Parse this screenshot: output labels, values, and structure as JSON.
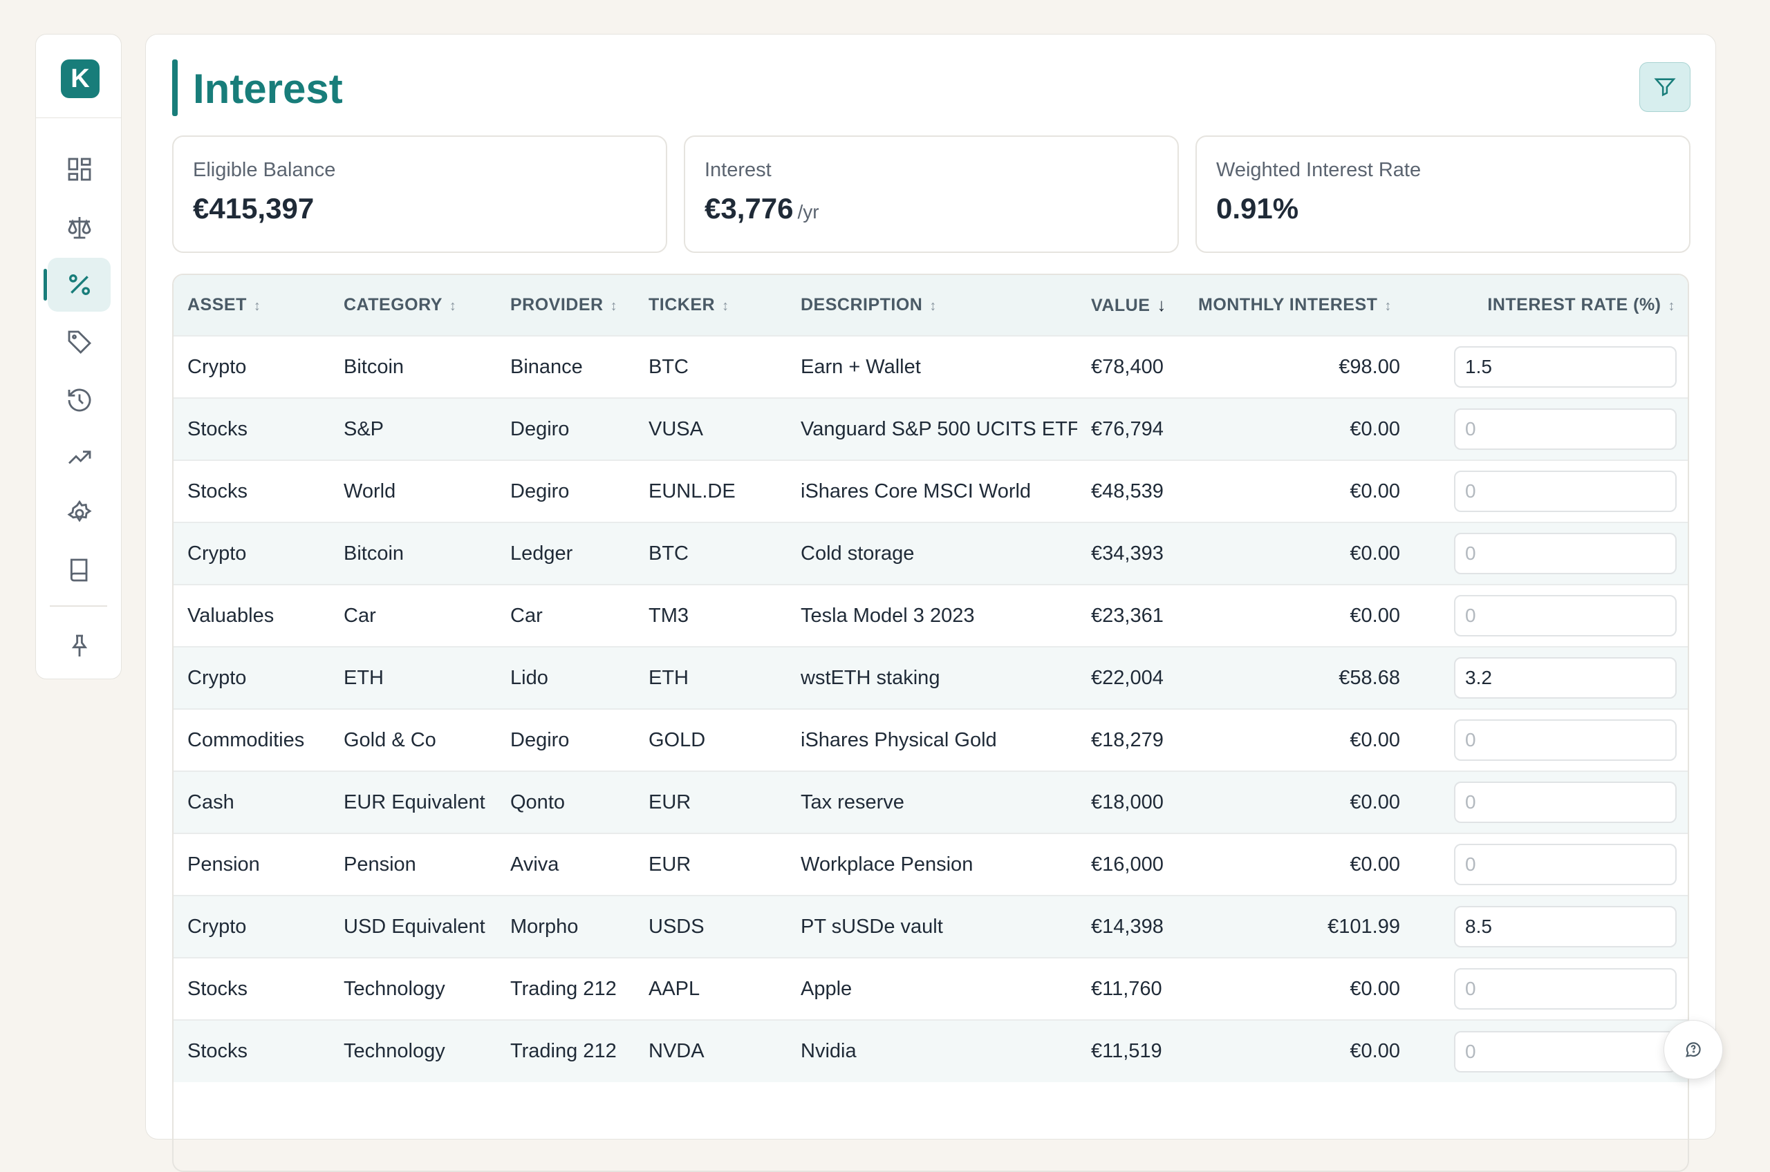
{
  "app": {
    "logo_letter": "K",
    "accent": "#187d7a"
  },
  "sidebar": {
    "items": [
      {
        "name": "dashboard",
        "icon": "dashboard-icon"
      },
      {
        "name": "balance",
        "icon": "scale-icon"
      },
      {
        "name": "interest",
        "icon": "percent-icon",
        "active": true
      },
      {
        "name": "tags",
        "icon": "tag-icon"
      },
      {
        "name": "history",
        "icon": "history-icon"
      },
      {
        "name": "trends",
        "icon": "trending-up-icon"
      },
      {
        "name": "settings",
        "icon": "gear-icon"
      },
      {
        "name": "docs",
        "icon": "book-icon"
      }
    ],
    "pin_icon": "pin-icon"
  },
  "page": {
    "title": "Interest"
  },
  "stats": {
    "eligible_label": "Eligible Balance",
    "eligible_value": "€415,397",
    "interest_label": "Interest",
    "interest_value": "€3,776",
    "interest_suffix": "/yr",
    "rate_label": "Weighted Interest Rate",
    "rate_value": "0.91%"
  },
  "table": {
    "columns": [
      {
        "key": "asset",
        "label": "ASSET"
      },
      {
        "key": "category",
        "label": "CATEGORY"
      },
      {
        "key": "provider",
        "label": "PROVIDER"
      },
      {
        "key": "ticker",
        "label": "TICKER"
      },
      {
        "key": "description",
        "label": "DESCRIPTION"
      },
      {
        "key": "value",
        "label": "VALUE",
        "sorted": "desc"
      },
      {
        "key": "monthly_interest",
        "label": "MONTHLY INTEREST"
      },
      {
        "key": "interest_rate",
        "label": "INTEREST RATE (%)"
      }
    ],
    "input_placeholder": "0",
    "rows": [
      {
        "asset": "Crypto",
        "category": "Bitcoin",
        "provider": "Binance",
        "ticker": "BTC",
        "description": "Earn + Wallet",
        "value": "€78,400",
        "monthly_interest": "€98.00",
        "rate": "1.5"
      },
      {
        "asset": "Stocks",
        "category": "S&P",
        "provider": "Degiro",
        "ticker": "VUSA",
        "description": "Vanguard S&P 500 UCITS ETF",
        "value": "€76,794",
        "monthly_interest": "€0.00",
        "rate": ""
      },
      {
        "asset": "Stocks",
        "category": "World",
        "provider": "Degiro",
        "ticker": "EUNL.DE",
        "description": "iShares Core MSCI World",
        "value": "€48,539",
        "monthly_interest": "€0.00",
        "rate": ""
      },
      {
        "asset": "Crypto",
        "category": "Bitcoin",
        "provider": "Ledger",
        "ticker": "BTC",
        "description": "Cold storage",
        "value": "€34,393",
        "monthly_interest": "€0.00",
        "rate": ""
      },
      {
        "asset": "Valuables",
        "category": "Car",
        "provider": "Car",
        "ticker": "TM3",
        "description": "Tesla Model 3 2023",
        "value": "€23,361",
        "monthly_interest": "€0.00",
        "rate": ""
      },
      {
        "asset": "Crypto",
        "category": "ETH",
        "provider": "Lido",
        "ticker": "ETH",
        "description": "wstETH staking",
        "value": "€22,004",
        "monthly_interest": "€58.68",
        "rate": "3.2"
      },
      {
        "asset": "Commodities",
        "category": "Gold & Co",
        "provider": "Degiro",
        "ticker": "GOLD",
        "description": "iShares Physical Gold",
        "value": "€18,279",
        "monthly_interest": "€0.00",
        "rate": ""
      },
      {
        "asset": "Cash",
        "category": "EUR Equivalent",
        "provider": "Qonto",
        "ticker": "EUR",
        "description": "Tax reserve",
        "value": "€18,000",
        "monthly_interest": "€0.00",
        "rate": ""
      },
      {
        "asset": "Pension",
        "category": "Pension",
        "provider": "Aviva",
        "ticker": "EUR",
        "description": "Workplace Pension",
        "value": "€16,000",
        "monthly_interest": "€0.00",
        "rate": ""
      },
      {
        "asset": "Crypto",
        "category": "USD Equivalent",
        "provider": "Morpho",
        "ticker": "USDS",
        "description": "PT sUSDe vault",
        "value": "€14,398",
        "monthly_interest": "€101.99",
        "rate": "8.5"
      },
      {
        "asset": "Stocks",
        "category": "Technology",
        "provider": "Trading 212",
        "ticker": "AAPL",
        "description": "Apple",
        "value": "€11,760",
        "monthly_interest": "€0.00",
        "rate": ""
      },
      {
        "asset": "Stocks",
        "category": "Technology",
        "provider": "Trading 212",
        "ticker": "NVDA",
        "description": "Nvidia",
        "value": "€11,519",
        "monthly_interest": "€0.00",
        "rate": ""
      }
    ]
  },
  "chat": {
    "icon": "chat-icon"
  }
}
